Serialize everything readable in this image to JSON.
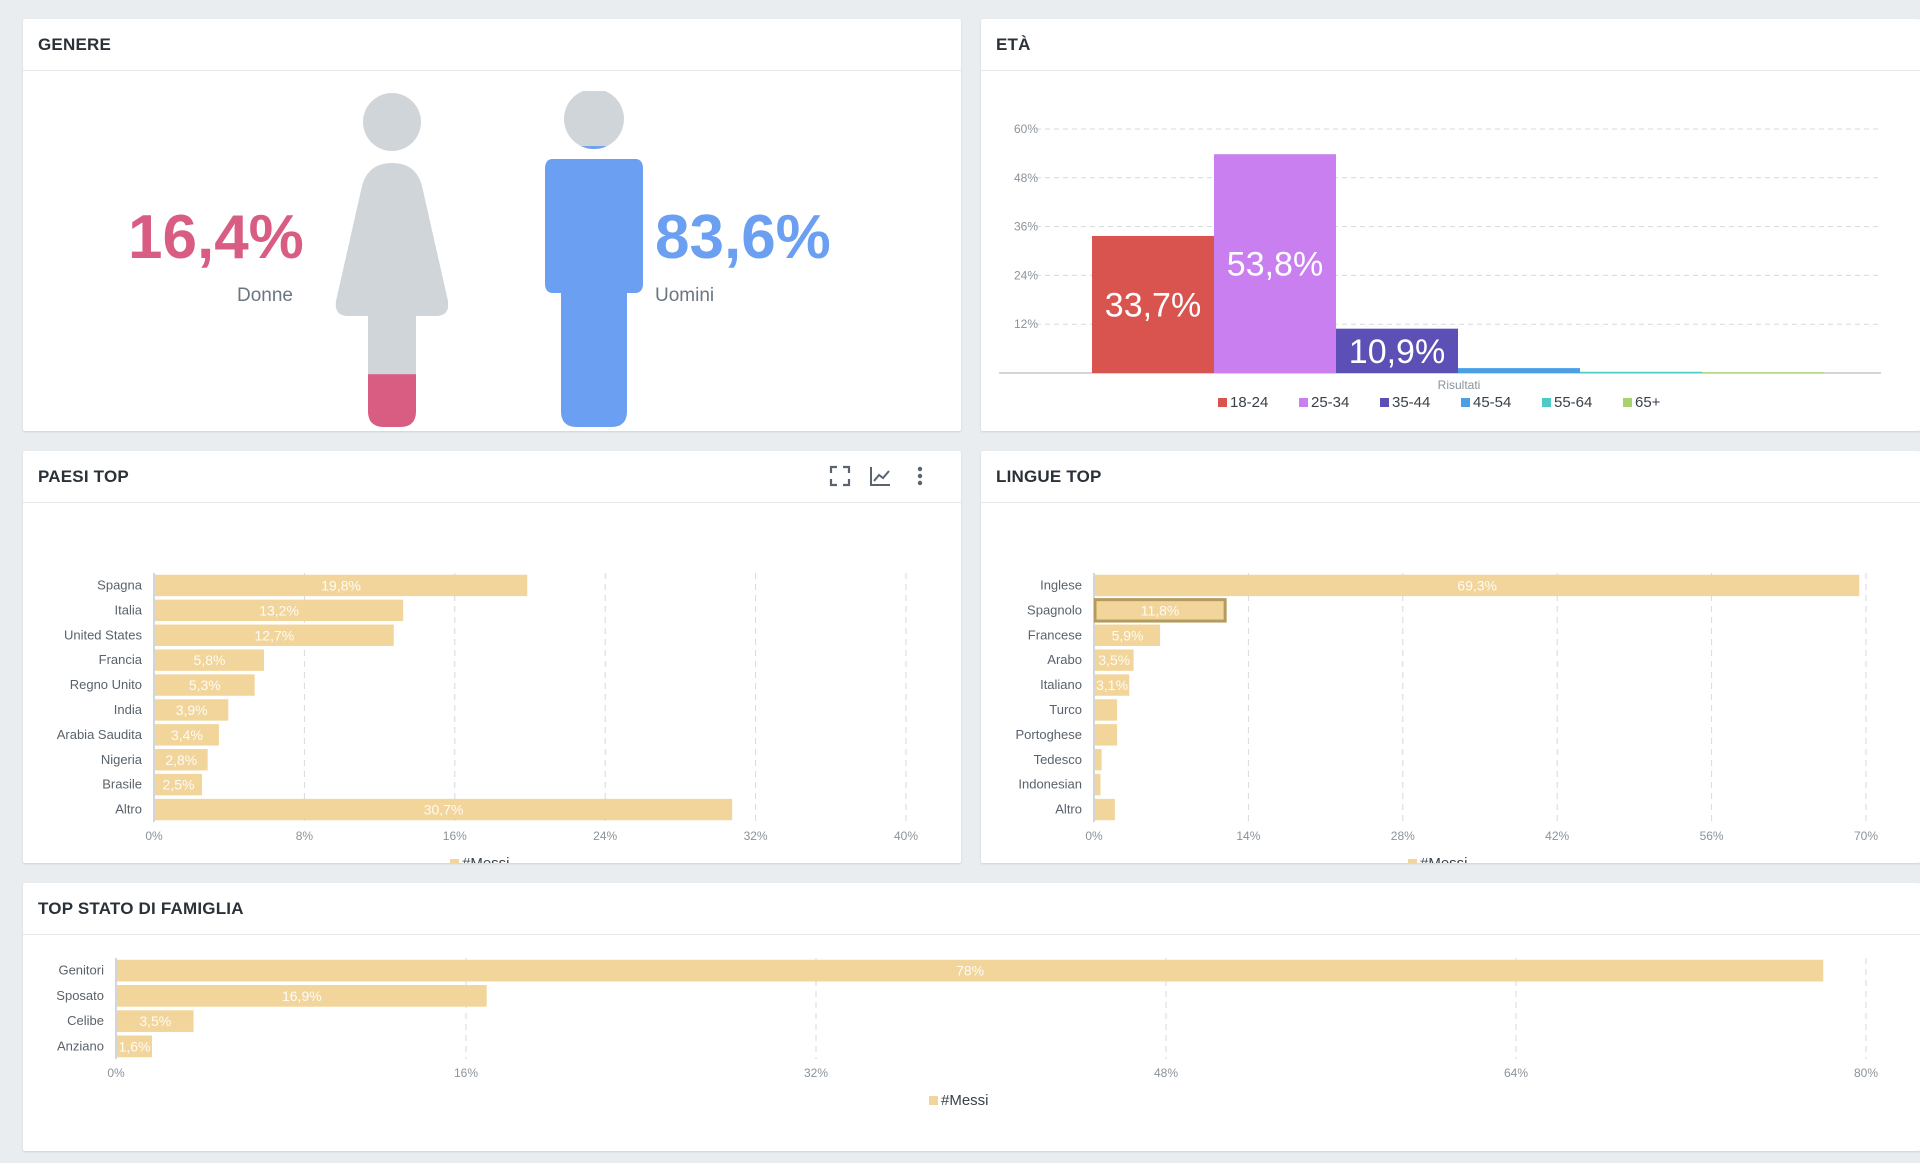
{
  "colors": {
    "women": "#d95c82",
    "men": "#6a9ff2",
    "figure_grey": "#d0d5d9",
    "bar": "#f2d59b",
    "bar_label": "#ffffff"
  },
  "gender": {
    "title": "GENERE",
    "women": {
      "pct": "16,4%",
      "label": "Donne",
      "value": 16.4
    },
    "men": {
      "pct": "83,6%",
      "label": "Uomini",
      "value": 83.6
    }
  },
  "age": {
    "title": "ETÀ",
    "chart_data": {
      "type": "bar",
      "xlabel": "Risultati",
      "ylim": [
        0,
        60
      ],
      "yticks": [
        "12%",
        "24%",
        "36%",
        "48%",
        "60%"
      ],
      "yticks_values": [
        12,
        24,
        36,
        48,
        60
      ],
      "grid": true,
      "legend_position": "bottom",
      "series": [
        {
          "name": "18-24",
          "value": 33.7,
          "label": "33,7%",
          "color": "#d9534f"
        },
        {
          "name": "25-34",
          "value": 53.8,
          "label": "53,8%",
          "color": "#c97fef"
        },
        {
          "name": "35-44",
          "value": 10.9,
          "label": "10,9%",
          "color": "#5c4fb5"
        },
        {
          "name": "45-54",
          "value": 1.2,
          "label": "",
          "color": "#4aa0e6"
        },
        {
          "name": "55-64",
          "value": 0.3,
          "label": "",
          "color": "#4ec9c6"
        },
        {
          "name": "65+",
          "value": 0.2,
          "label": "",
          "color": "#a9d16d"
        }
      ]
    }
  },
  "countries": {
    "title": "PAESI TOP",
    "tools": [
      "expand-icon",
      "line-chart-icon",
      "more-vertical-icon"
    ],
    "chart_data": {
      "type": "bar",
      "orientation": "horizontal",
      "categories": [
        "Spagna",
        "Italia",
        "United States",
        "Francia",
        "Regno Unito",
        "India",
        "Arabia Saudita",
        "Nigeria",
        "Brasile",
        "Altro"
      ],
      "values": [
        19.8,
        13.2,
        12.7,
        5.8,
        5.3,
        3.9,
        3.4,
        2.8,
        2.5,
        30.7
      ],
      "labels": [
        "19,8%",
        "13,2%",
        "12,7%",
        "5,8%",
        "5,3%",
        "3,9%",
        "3,4%",
        "2,8%",
        "2,5%",
        "30,7%"
      ],
      "xlim": [
        0,
        40
      ],
      "xticks": [
        "0%",
        "8%",
        "16%",
        "24%",
        "32%",
        "40%"
      ],
      "xticks_values": [
        0,
        8,
        16,
        24,
        32,
        40
      ],
      "legend": [
        "#Messi"
      ],
      "legend_position": "bottom"
    }
  },
  "languages": {
    "title": "LINGUE TOP",
    "chart_data": {
      "type": "bar",
      "orientation": "horizontal",
      "categories": [
        "Inglese",
        "Spagnolo",
        "Francese",
        "Arabo",
        "Italiano",
        "Turco",
        "Portoghese",
        "Tedesco",
        "Indonesian",
        "Altro"
      ],
      "values": [
        69.3,
        11.8,
        5.9,
        3.5,
        3.1,
        2.0,
        2.0,
        0.6,
        0.5,
        1.8
      ],
      "labels": [
        "69,3%",
        "11,8%",
        "5,9%",
        "3,5%",
        "3,1%",
        "",
        "",
        "",
        "",
        ""
      ],
      "highlighted": "Spagnolo",
      "xlim": [
        0,
        70
      ],
      "xticks": [
        "0%",
        "14%",
        "28%",
        "42%",
        "56%",
        "70%"
      ],
      "xticks_values": [
        0,
        14,
        28,
        42,
        56,
        70
      ],
      "legend": [
        "#Messi"
      ],
      "legend_position": "bottom"
    }
  },
  "family": {
    "title": "TOP STATO DI FAMIGLIA",
    "chart_data": {
      "type": "bar",
      "orientation": "horizontal",
      "categories": [
        "Genitori",
        "Sposato",
        "Celibe",
        "Anziano"
      ],
      "values": [
        78,
        16.9,
        3.5,
        1.6
      ],
      "labels": [
        "78%",
        "16,9%",
        "3,5%",
        "1,6%"
      ],
      "xlim": [
        0,
        80
      ],
      "xticks": [
        "0%",
        "16%",
        "32%",
        "48%",
        "64%",
        "80%"
      ],
      "xticks_values": [
        0,
        16,
        32,
        48,
        64,
        80
      ],
      "legend": [
        "#Messi"
      ],
      "legend_position": "bottom"
    }
  }
}
